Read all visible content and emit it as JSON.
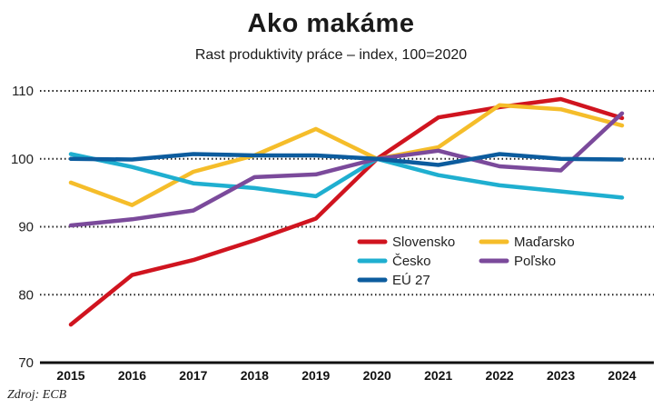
{
  "header": {
    "title": "Ako makáme",
    "subtitle": "Rast produktivity práce – index, 100=2020"
  },
  "footer": {
    "source": "Zdroj: ECB"
  },
  "chart_data": {
    "type": "line",
    "title": "Ako makáme",
    "subtitle": "Rast produktivity práce – index, 100=2020",
    "xlabel": "",
    "ylabel": "",
    "x": [
      "2015",
      "2016",
      "2017",
      "2018",
      "2019",
      "2020",
      "2021",
      "2022",
      "2023",
      "2024"
    ],
    "yticks": [
      70,
      80,
      90,
      100,
      110
    ],
    "ylim": [
      70,
      110
    ],
    "grid": "dotted horizontal",
    "legend_position": "inside lower right",
    "source": "Zdroj: ECB",
    "series": [
      {
        "name": "Slovensko",
        "color": "#d0141f",
        "values": [
          75.6,
          82.9,
          85.1,
          88.0,
          91.2,
          100.0,
          106.1,
          107.6,
          108.8,
          106.0
        ]
      },
      {
        "name": "Maďarsko",
        "color": "#f5bd2a",
        "values": [
          96.5,
          93.2,
          98.1,
          100.5,
          104.4,
          100.0,
          101.7,
          107.9,
          107.3,
          104.9
        ]
      },
      {
        "name": "Česko",
        "color": "#1fafd0",
        "values": [
          100.7,
          98.8,
          96.4,
          95.7,
          94.5,
          100.0,
          97.6,
          96.1,
          95.2,
          94.3
        ]
      },
      {
        "name": "Poľsko",
        "color": "#7b4a9b",
        "values": [
          90.2,
          91.1,
          92.4,
          97.3,
          97.7,
          100.0,
          101.2,
          98.9,
          98.3,
          106.7
        ]
      },
      {
        "name": "EÚ 27",
        "color": "#0c5c9e",
        "values": [
          100.0,
          99.9,
          100.7,
          100.5,
          100.5,
          100.0,
          99.1,
          100.7,
          100.0,
          99.9
        ]
      }
    ]
  }
}
